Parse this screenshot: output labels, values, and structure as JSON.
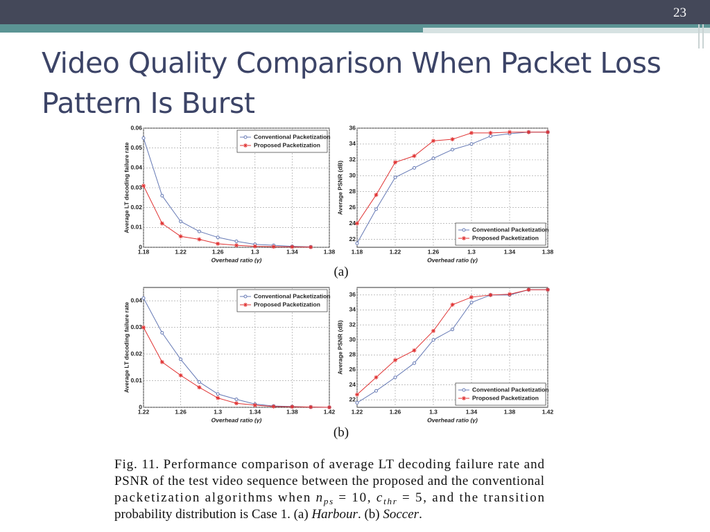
{
  "slide": {
    "page_number": "23",
    "title": "Video Quality Comparison When Packet Loss Pattern Is Burst",
    "panel_labels": [
      "(a)",
      "(b)"
    ],
    "caption": {
      "line1": "Fig. 11.  Performance comparison of average LT decoding failure rate and",
      "line2": "PSNR of the test video sequence between the proposed and the conventional",
      "line3": [
        "packetization algorithms when ",
        "n",
        "ps",
        " = 10, ",
        "c",
        "thr",
        " = 5, and the transition"
      ],
      "line4": [
        "probability distribution is Case 1. (a) ",
        "Harbour",
        ". (b) ",
        "Soccer",
        "."
      ]
    }
  },
  "chart_data": [
    {
      "type": "line",
      "xlabel": "Overhead ratio (γ)",
      "ylabel": "Average LT decoding failure rate",
      "x": [
        1.18,
        1.2,
        1.22,
        1.24,
        1.26,
        1.28,
        1.3,
        1.32,
        1.34,
        1.36
      ],
      "xlim": [
        1.18,
        1.38
      ],
      "xticks": [
        1.18,
        1.22,
        1.26,
        1.3,
        1.34,
        1.38
      ],
      "ylim": [
        0,
        0.06
      ],
      "yticks": [
        0,
        0.01,
        0.02,
        0.03,
        0.04,
        0.05,
        0.06
      ],
      "grid": true,
      "legend": "upper right",
      "series": [
        {
          "name": "Conventional Packetization",
          "color": "#6478b4",
          "marker": "circle",
          "values": [
            0.055,
            0.026,
            0.013,
            0.008,
            0.005,
            0.003,
            0.0015,
            0.001,
            0.0005,
            0.0002
          ]
        },
        {
          "name": "Proposed Packetization",
          "color": "#e03232",
          "marker": "star",
          "values": [
            0.031,
            0.012,
            0.0055,
            0.004,
            0.0018,
            0.001,
            0.0005,
            0.0003,
            0.0002,
            0.0001
          ]
        }
      ]
    },
    {
      "type": "line",
      "xlabel": "Overhead ratio (γ)",
      "ylabel": "Average PSNR (dB)",
      "x": [
        1.18,
        1.2,
        1.22,
        1.24,
        1.26,
        1.28,
        1.3,
        1.32,
        1.34,
        1.36,
        1.38
      ],
      "xlim": [
        1.18,
        1.38
      ],
      "xticks": [
        1.18,
        1.22,
        1.26,
        1.3,
        1.34,
        1.38
      ],
      "ylim": [
        21,
        36
      ],
      "yticks": [
        22,
        24,
        26,
        28,
        30,
        32,
        34,
        36
      ],
      "grid": true,
      "legend": "lower right",
      "series": [
        {
          "name": "Conventional Packetization",
          "color": "#6478b4",
          "marker": "circle",
          "values": [
            21.5,
            25.8,
            29.8,
            31,
            32.2,
            33.3,
            34,
            35,
            35.3,
            35.5,
            35.5
          ]
        },
        {
          "name": "Proposed Packetization",
          "color": "#e03232",
          "marker": "star",
          "values": [
            24,
            27.6,
            31.7,
            32.5,
            34.4,
            34.6,
            35.4,
            35.4,
            35.5,
            35.5,
            35.5
          ]
        }
      ]
    },
    {
      "type": "line",
      "xlabel": "Overhead ratio (γ)",
      "ylabel": "Average LT decoding failure rate",
      "x": [
        1.22,
        1.24,
        1.26,
        1.28,
        1.3,
        1.32,
        1.34,
        1.36,
        1.38,
        1.4,
        1.42
      ],
      "xlim": [
        1.22,
        1.42
      ],
      "xticks": [
        1.22,
        1.26,
        1.3,
        1.34,
        1.38,
        1.42
      ],
      "ylim": [
        0,
        0.045
      ],
      "yticks": [
        0,
        0.01,
        0.02,
        0.03,
        0.04
      ],
      "grid": true,
      "legend": "upper right",
      "series": [
        {
          "name": "Conventional Packetization",
          "color": "#6478b4",
          "marker": "circle",
          "values": [
            0.041,
            0.028,
            0.018,
            0.0095,
            0.005,
            0.003,
            0.0012,
            0.0005,
            0.0003,
            0.0001,
            0
          ]
        },
        {
          "name": "Proposed Packetization",
          "color": "#e03232",
          "marker": "star",
          "values": [
            0.03,
            0.017,
            0.012,
            0.0075,
            0.0035,
            0.0015,
            0.0008,
            0.0003,
            0.0002,
            0.0001,
            0
          ]
        }
      ]
    },
    {
      "type": "line",
      "xlabel": "Overhead ratio (γ)",
      "ylabel": "Average PSNR (dB)",
      "x": [
        1.22,
        1.24,
        1.26,
        1.28,
        1.3,
        1.32,
        1.34,
        1.36,
        1.38,
        1.4,
        1.42
      ],
      "xlim": [
        1.22,
        1.42
      ],
      "xticks": [
        1.22,
        1.26,
        1.3,
        1.34,
        1.38,
        1.42
      ],
      "ylim": [
        21,
        37
      ],
      "yticks": [
        22,
        24,
        26,
        28,
        30,
        32,
        34,
        36
      ],
      "grid": true,
      "legend": "lower right",
      "series": [
        {
          "name": "Conventional Packetization",
          "color": "#6478b4",
          "marker": "circle",
          "values": [
            21.6,
            23.2,
            25,
            26.9,
            30,
            31.4,
            35,
            36,
            36,
            36.7,
            36.7
          ]
        },
        {
          "name": "Proposed Packetization",
          "color": "#e03232",
          "marker": "star",
          "values": [
            22.7,
            25,
            27.3,
            28.6,
            31.2,
            34.7,
            35.7,
            36,
            36.1,
            36.7,
            36.7
          ]
        }
      ]
    }
  ]
}
